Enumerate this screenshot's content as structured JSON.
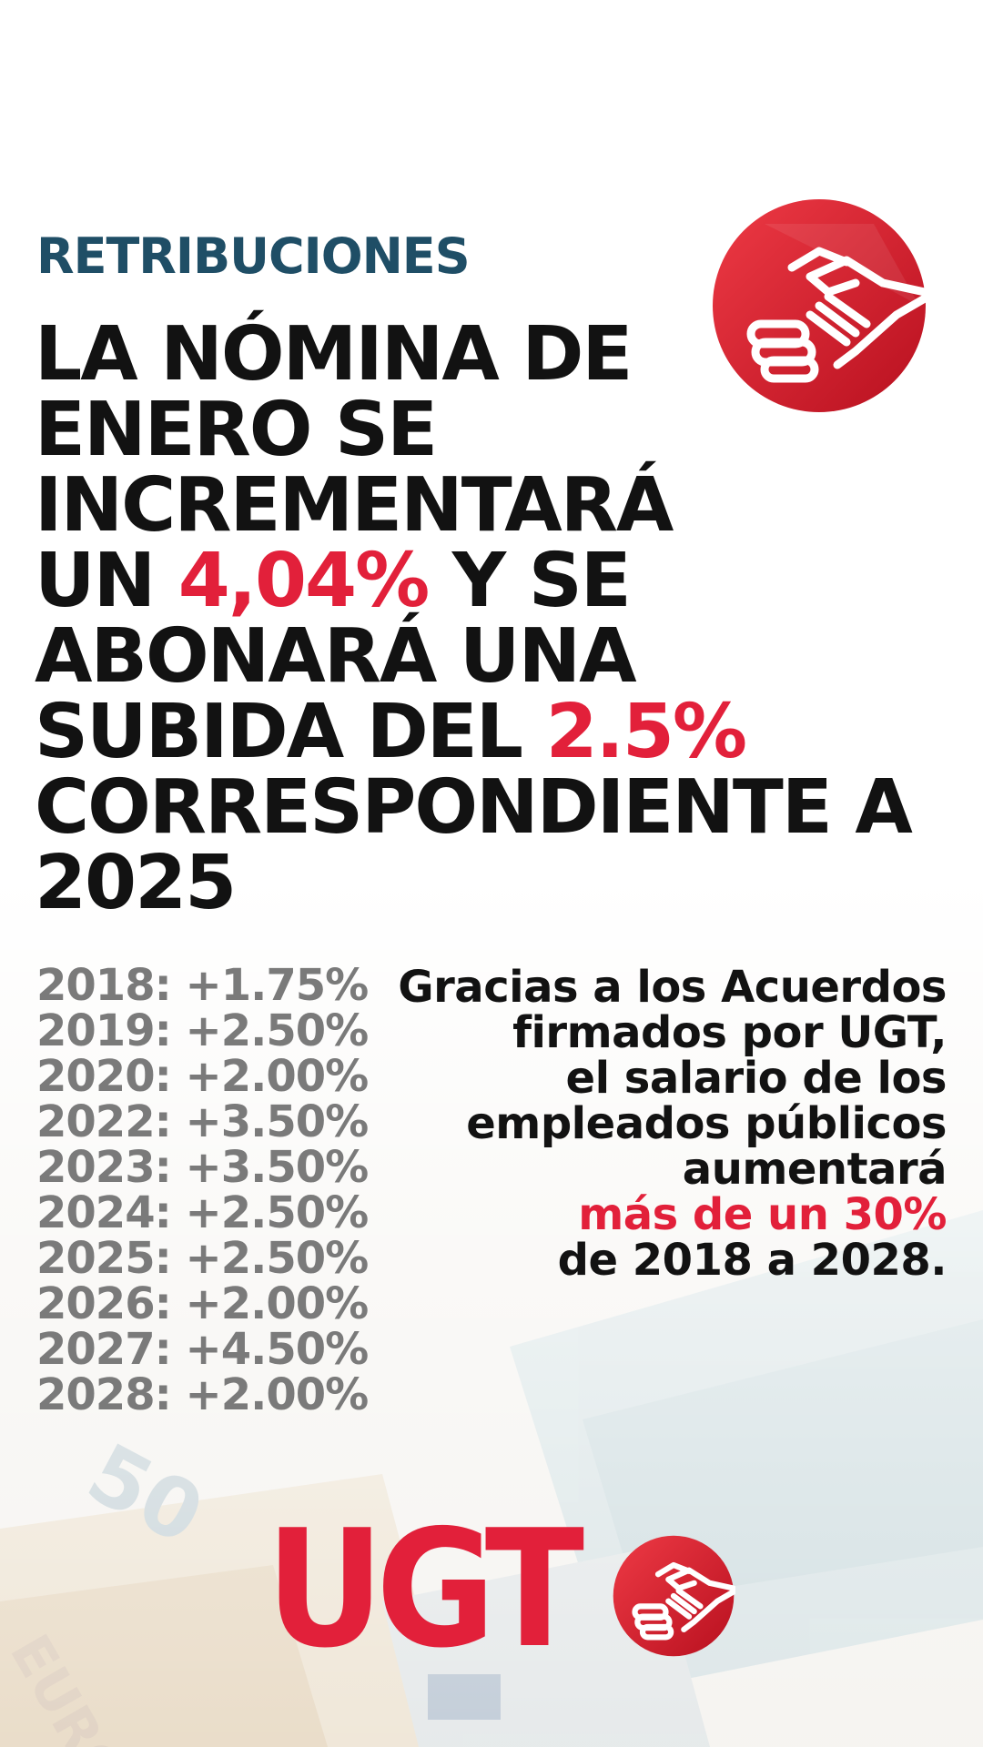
{
  "section_title": "RETRIBUCIONES",
  "headline": {
    "line1": "LA NÓMINA DE",
    "line2": "ENERO SE",
    "line3": "INCREMENTARÁ",
    "line4_pre": "UN ",
    "line4_highlight": "4,04%",
    "line4_post": " Y SE",
    "line5": "ABONARÁ UNA",
    "line6_pre": "SUBIDA DEL ",
    "line6_highlight": "2.5%",
    "line7": "CORRESPONDIENTE A",
    "line8": "2025"
  },
  "rates": [
    "2018: +1.75%",
    "2019: +2.50%",
    "2020: +2.00%",
    "2022: +3.50%",
    "2023: +3.50%",
    "2024: +2.50%",
    "2025: +2.50%",
    "2026: +2.00%",
    "2027: +4.50%",
    "2028: +2.00%"
  ],
  "note": {
    "line1": "Gracias a los Acuerdos",
    "line2": "firmados por UGT,",
    "line3": "el salario de los",
    "line4": "empleados públicos",
    "line5": "aumentará",
    "line6_highlight": "más de un 30%",
    "line7": "de 2018 a 2028."
  },
  "brand": {
    "name": "UGT",
    "logo_icon": "handshake-icon",
    "primary_color": "#e2203a",
    "section_color": "#1f4e66"
  },
  "background": {
    "image": "euro-banknotes"
  }
}
